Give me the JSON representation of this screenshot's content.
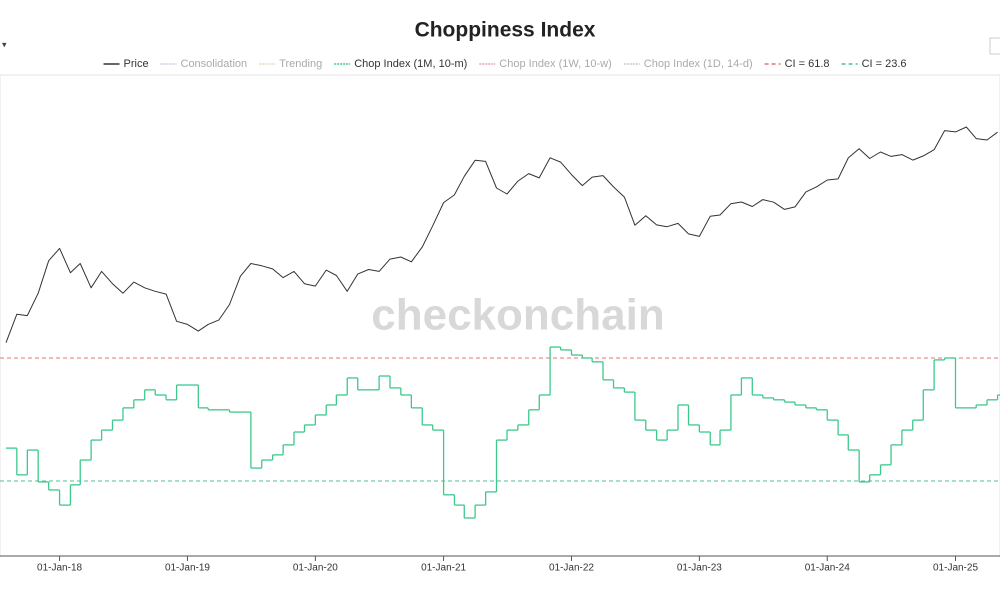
{
  "chart_data": {
    "type": "line",
    "title": "Choppiness Index",
    "watermark": "checkonchain",
    "x": [
      "2017-08-01",
      "2017-09-01",
      "2017-10-01",
      "2017-11-01",
      "2017-12-01",
      "2018-01-01",
      "2018-02-01",
      "2018-03-01",
      "2018-04-01",
      "2018-05-01",
      "2018-06-01",
      "2018-07-01",
      "2018-08-01",
      "2018-09-01",
      "2018-10-01",
      "2018-11-01",
      "2018-12-01",
      "2019-01-01",
      "2019-02-01",
      "2019-03-01",
      "2019-04-01",
      "2019-05-01",
      "2019-06-01",
      "2019-07-01",
      "2019-08-01",
      "2019-09-01",
      "2019-10-01",
      "2019-11-01",
      "2019-12-01",
      "2020-01-01",
      "2020-02-01",
      "2020-03-01",
      "2020-04-01",
      "2020-05-01",
      "2020-06-01",
      "2020-07-01",
      "2020-08-01",
      "2020-09-01",
      "2020-10-01",
      "2020-11-01",
      "2020-12-01",
      "2021-01-01",
      "2021-02-01",
      "2021-03-01",
      "2021-04-01",
      "2021-05-01",
      "2021-06-01",
      "2021-07-01",
      "2021-08-01",
      "2021-09-01",
      "2021-10-01",
      "2021-11-01",
      "2021-12-01",
      "2022-01-01",
      "2022-02-01",
      "2022-03-01",
      "2022-04-01",
      "2022-05-01",
      "2022-06-01",
      "2022-07-01",
      "2022-08-01",
      "2022-09-01",
      "2022-10-01",
      "2022-11-01",
      "2022-12-01",
      "2023-01-01",
      "2023-02-01",
      "2023-03-01",
      "2023-04-01",
      "2023-05-01",
      "2023-06-01",
      "2023-07-01",
      "2023-08-01",
      "2023-09-01",
      "2023-10-01",
      "2023-11-01",
      "2023-12-01",
      "2024-01-01",
      "2024-02-01",
      "2024-03-01",
      "2024-04-01",
      "2024-05-01",
      "2024-06-01",
      "2024-07-01",
      "2024-08-01",
      "2024-09-01",
      "2024-10-01",
      "2024-11-01",
      "2024-12-01",
      "2025-01-01",
      "2025-02-01",
      "2025-03-01",
      "2025-04-01",
      "2025-05-01"
    ],
    "xlim": [
      "2017-07-15",
      "2025-05-08"
    ],
    "xticks": [
      {
        "value": "2018-01-01",
        "label": "01-Jan-18"
      },
      {
        "value": "2019-01-01",
        "label": "01-Jan-19"
      },
      {
        "value": "2020-01-01",
        "label": "01-Jan-20"
      },
      {
        "value": "2021-01-01",
        "label": "01-Jan-21"
      },
      {
        "value": "2022-01-01",
        "label": "01-Jan-22"
      },
      {
        "value": "2023-01-01",
        "label": "01-Jan-23"
      },
      {
        "value": "2024-01-01",
        "label": "01-Jan-24"
      },
      {
        "value": "2025-01-01",
        "label": "01-Jan-25"
      }
    ],
    "ylim": [
      81,
      244000
    ],
    "y_log": true,
    "y2lim": [
      0.6,
      149.7
    ],
    "series": [
      {
        "name": "Price",
        "color": "#333333",
        "axis": "y",
        "step": false,
        "values": [
          2800,
          4500,
          4400,
          6400,
          11000,
          13500,
          9000,
          10500,
          7000,
          9200,
          7500,
          6400,
          7700,
          7000,
          6600,
          6300,
          4000,
          3800,
          3400,
          3800,
          4100,
          5300,
          8500,
          10500,
          10100,
          9600,
          8300,
          9200,
          7500,
          7200,
          9400,
          8600,
          6600,
          8800,
          9500,
          9200,
          11300,
          11700,
          10800,
          13800,
          19700,
          29000,
          33000,
          45000,
          58800,
          57700,
          37000,
          33500,
          41500,
          47100,
          43800,
          61300,
          57000,
          46300,
          38500,
          44400,
          45500,
          37700,
          31800,
          19900,
          23300,
          20000,
          19400,
          20500,
          17200,
          16500,
          23100,
          23600,
          28500,
          29300,
          27200,
          30500,
          29200,
          25900,
          27000,
          34700,
          37700,
          42300,
          43100,
          61200,
          71300,
          60600,
          67500,
          62700,
          64600,
          59000,
          63300,
          70200,
          96400,
          94400,
          102400,
          84400,
          82500,
          94000
        ]
      },
      {
        "name": "Chop Index (1M, 10-m)",
        "color": "#3cc98a",
        "axis": "y2",
        "step": true,
        "values": [
          33.8,
          25.5,
          33.2,
          23.3,
          20.8,
          16.1,
          22.4,
          30.1,
          36.3,
          39.4,
          42.5,
          46.3,
          48.8,
          51.9,
          50.3,
          48.8,
          53.4,
          53.4,
          46.3,
          45.7,
          45.7,
          45.0,
          45.0,
          27.6,
          30.1,
          31.7,
          34.8,
          38.8,
          41.0,
          44.1,
          47.2,
          50.3,
          55.6,
          51.9,
          51.9,
          56.2,
          52.5,
          50.3,
          46.3,
          41.0,
          39.4,
          19.3,
          16.1,
          12.1,
          16.1,
          20.2,
          36.3,
          39.4,
          41.0,
          45.7,
          50.3,
          65.2,
          64.3,
          62.7,
          61.8,
          60.6,
          55.0,
          52.5,
          51.2,
          42.5,
          39.4,
          36.3,
          39.4,
          47.2,
          41.0,
          38.8,
          34.8,
          39.4,
          50.3,
          55.6,
          50.3,
          49.4,
          48.8,
          48.1,
          47.2,
          46.3,
          45.7,
          42.5,
          37.9,
          33.2,
          23.3,
          25.5,
          28.6,
          34.8,
          39.4,
          42.5,
          51.9,
          61.2,
          61.8,
          46.3,
          46.3,
          47.2,
          48.8,
          50.3
        ]
      }
    ],
    "hidden_series": [
      {
        "name": "Consolidation",
        "color": "#c9cde0"
      },
      {
        "name": "Trending",
        "color": "#e8d9c0"
      },
      {
        "name": "Chop Index (1W, 10-w)",
        "color": "#e8a0b0"
      },
      {
        "name": "Chop Index (1D, 14-d)",
        "color": "#c8c8c8"
      }
    ],
    "ref_lines": [
      {
        "name": "CI = 61.8",
        "value": 61.8,
        "color": "#e57373"
      },
      {
        "name": "CI = 23.6",
        "value": 23.6,
        "color": "#4fbf94"
      }
    ],
    "legend_position": "top"
  }
}
